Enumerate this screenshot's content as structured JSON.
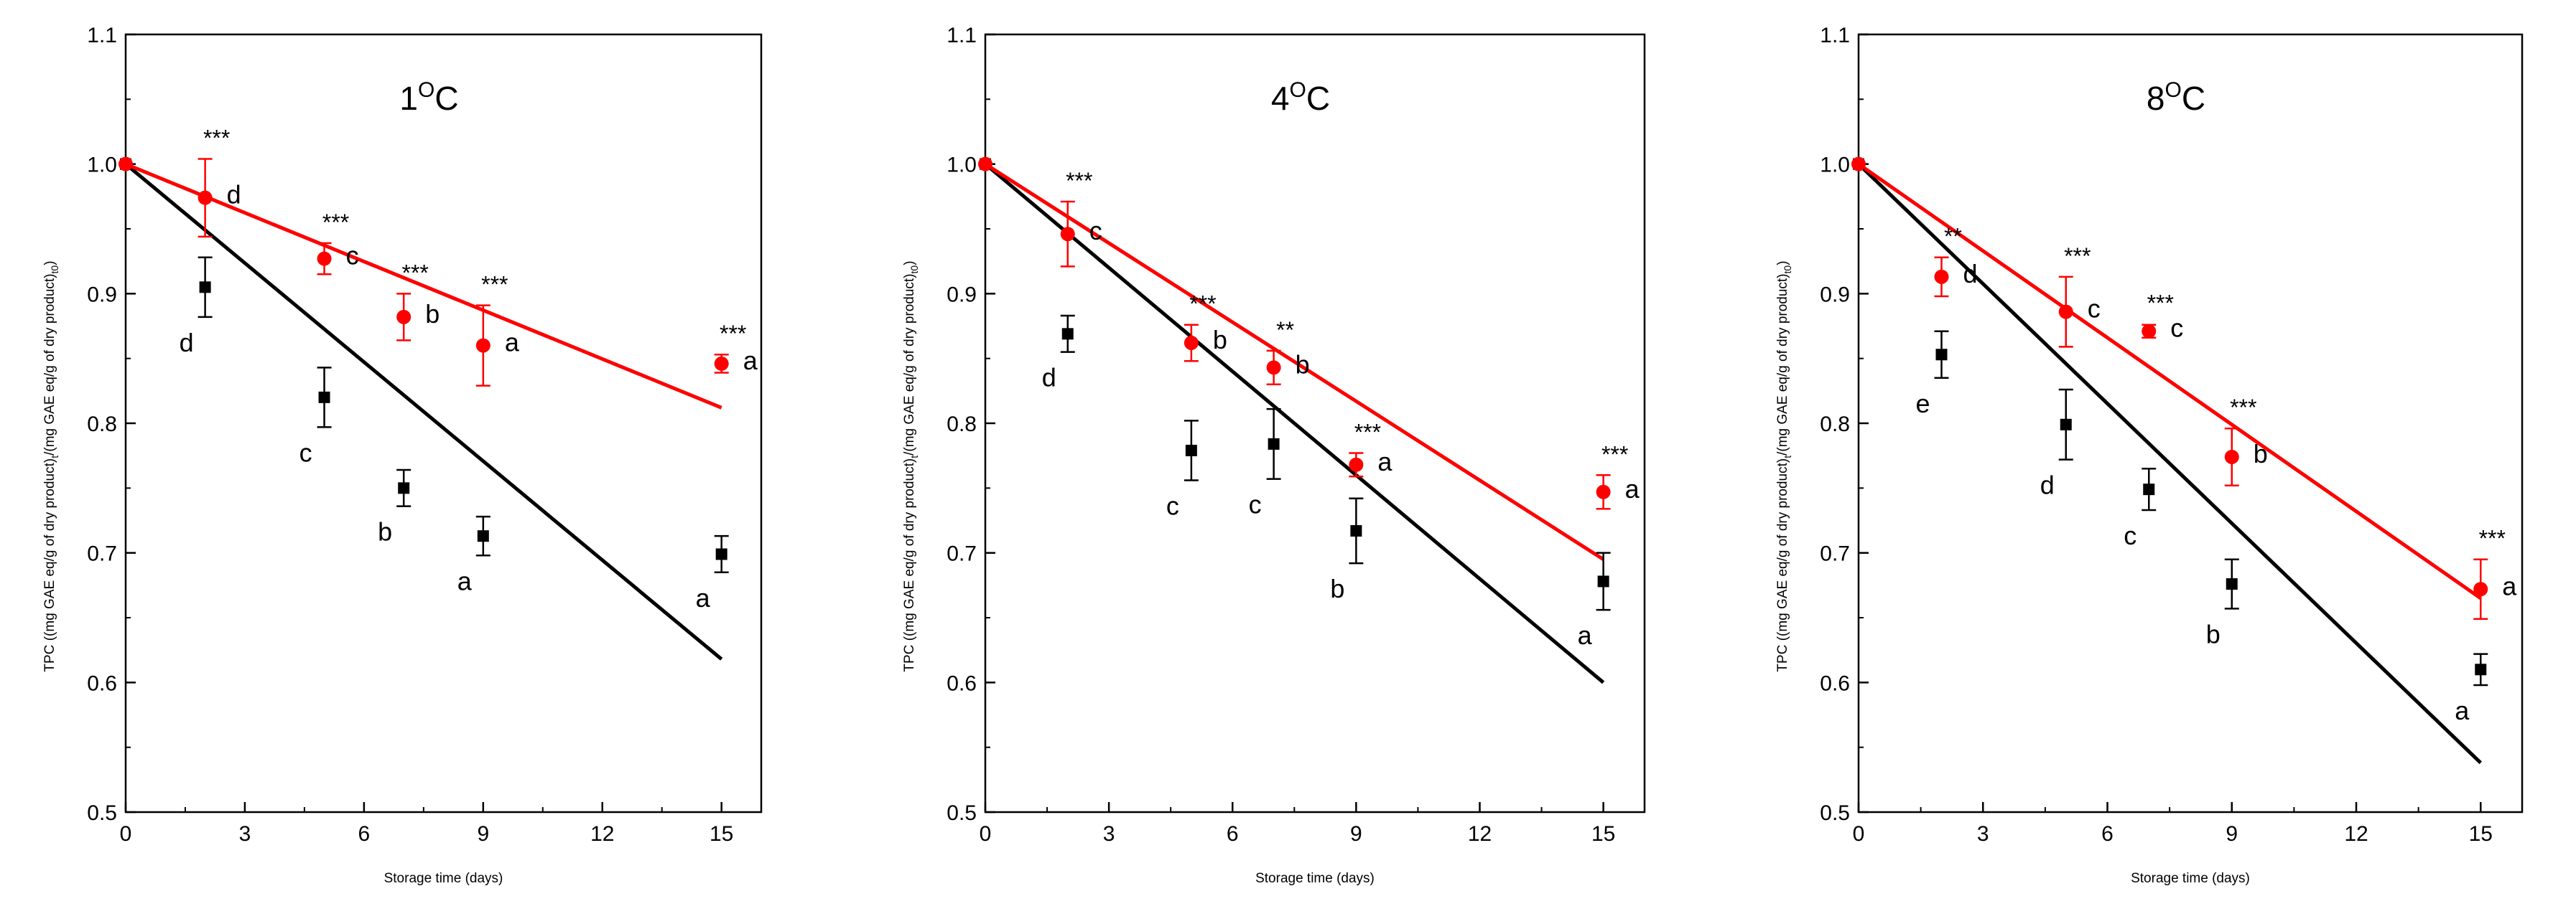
{
  "chart_data": [
    {
      "type": "scatter",
      "title": "1",
      "title_unit": "C",
      "xlabel": "Storage time (days)",
      "ylabel": "TPC ((mg GAE eq/g of dry product)",
      "ylabel_sub_t": "t",
      "ylabel_mid": "/(mg GAE eq/g of dry product)",
      "ylabel_sub_t0": "t0",
      "ylabel_end": ")",
      "xlim": [
        0,
        16
      ],
      "ylim": [
        0.5,
        1.1
      ],
      "xticks": [
        "0",
        "3",
        "6",
        "9",
        "12",
        "15"
      ],
      "yticks": [
        "0.5",
        "0.6",
        "0.7",
        "0.8",
        "0.9",
        "1.0",
        "1.1"
      ],
      "series": [
        {
          "name": "black",
          "marker": "square",
          "color": "#000000",
          "points": [
            {
              "x": 0,
              "y": 1.0,
              "err": 0,
              "letter": ""
            },
            {
              "x": 2,
              "y": 0.905,
              "err": 0.023,
              "letter": "d"
            },
            {
              "x": 5,
              "y": 0.82,
              "err": 0.023,
              "letter": "c"
            },
            {
              "x": 7,
              "y": 0.75,
              "err": 0.014,
              "letter": "b"
            },
            {
              "x": 9,
              "y": 0.713,
              "err": 0.015,
              "letter": "a"
            },
            {
              "x": 15,
              "y": 0.699,
              "err": 0.014,
              "letter": "a"
            }
          ],
          "fit": [
            [
              0,
              1.0
            ],
            [
              15,
              0.618
            ]
          ]
        },
        {
          "name": "red",
          "marker": "circle",
          "color": "#ff0000",
          "points": [
            {
              "x": 0,
              "y": 1.0,
              "err": 0,
              "letter": "",
              "sig": ""
            },
            {
              "x": 2,
              "y": 0.974,
              "err": 0.03,
              "letter": "d",
              "sig": "***"
            },
            {
              "x": 5,
              "y": 0.927,
              "err": 0.012,
              "letter": "c",
              "sig": "***"
            },
            {
              "x": 7,
              "y": 0.882,
              "err": 0.018,
              "letter": "b",
              "sig": "***"
            },
            {
              "x": 9,
              "y": 0.86,
              "err": 0.031,
              "letter": "a",
              "sig": "***"
            },
            {
              "x": 15,
              "y": 0.846,
              "err": 0.007,
              "letter": "a",
              "sig": "***"
            }
          ],
          "fit": [
            [
              0,
              1.0
            ],
            [
              15,
              0.812
            ]
          ]
        }
      ]
    },
    {
      "type": "scatter",
      "title": "4",
      "title_unit": "C",
      "xlabel": "Storage time (days)",
      "ylabel": "TPC ((mg GAE eq/g of dry product)",
      "ylabel_sub_t": "t",
      "ylabel_mid": "/(mg GAE eq/g of dry product)",
      "ylabel_sub_t0": "t0",
      "ylabel_end": ")",
      "xlim": [
        0,
        16
      ],
      "ylim": [
        0.5,
        1.1
      ],
      "xticks": [
        "0",
        "3",
        "6",
        "9",
        "12",
        "15"
      ],
      "yticks": [
        "0.5",
        "0.6",
        "0.7",
        "0.8",
        "0.9",
        "1.0",
        "1.1"
      ],
      "series": [
        {
          "name": "black",
          "marker": "square",
          "color": "#000000",
          "points": [
            {
              "x": 0,
              "y": 1.0,
              "err": 0,
              "letter": ""
            },
            {
              "x": 2,
              "y": 0.869,
              "err": 0.014,
              "letter": "d"
            },
            {
              "x": 5,
              "y": 0.779,
              "err": 0.023,
              "letter": "c"
            },
            {
              "x": 7,
              "y": 0.784,
              "err": 0.027,
              "letter": "c"
            },
            {
              "x": 9,
              "y": 0.717,
              "err": 0.025,
              "letter": "b"
            },
            {
              "x": 15,
              "y": 0.678,
              "err": 0.022,
              "letter": "a"
            }
          ],
          "fit": [
            [
              0,
              1.0
            ],
            [
              15,
              0.6
            ]
          ]
        },
        {
          "name": "red",
          "marker": "circle",
          "color": "#ff0000",
          "points": [
            {
              "x": 0,
              "y": 1.0,
              "err": 0,
              "letter": "",
              "sig": ""
            },
            {
              "x": 2,
              "y": 0.946,
              "err": 0.025,
              "letter": "c",
              "sig": "***"
            },
            {
              "x": 5,
              "y": 0.862,
              "err": 0.014,
              "letter": "b",
              "sig": "***"
            },
            {
              "x": 7,
              "y": 0.843,
              "err": 0.013,
              "letter": "b",
              "sig": "**"
            },
            {
              "x": 9,
              "y": 0.768,
              "err": 0.009,
              "letter": "a",
              "sig": "***"
            },
            {
              "x": 15,
              "y": 0.747,
              "err": 0.013,
              "letter": "a",
              "sig": "***"
            }
          ],
          "fit": [
            [
              0,
              1.0
            ],
            [
              15,
              0.695
            ]
          ]
        }
      ]
    },
    {
      "type": "scatter",
      "title": "8",
      "title_unit": "C",
      "xlabel": "Storage time (days)",
      "ylabel": "TPC ((mg GAE eq/g of dry product)",
      "ylabel_sub_t": "t",
      "ylabel_mid": "/(mg GAE eq/g of dry product)",
      "ylabel_sub_t0": "t0",
      "ylabel_end": ")",
      "xlim": [
        0,
        16
      ],
      "ylim": [
        0.5,
        1.1
      ],
      "xticks": [
        "0",
        "3",
        "6",
        "9",
        "12",
        "15"
      ],
      "yticks": [
        "0.5",
        "0.6",
        "0.7",
        "0.8",
        "0.9",
        "1.0",
        "1.1"
      ],
      "series": [
        {
          "name": "black",
          "marker": "square",
          "color": "#000000",
          "points": [
            {
              "x": 0,
              "y": 1.0,
              "err": 0,
              "letter": ""
            },
            {
              "x": 2,
              "y": 0.853,
              "err": 0.018,
              "letter": "e"
            },
            {
              "x": 5,
              "y": 0.799,
              "err": 0.027,
              "letter": "d"
            },
            {
              "x": 7,
              "y": 0.749,
              "err": 0.016,
              "letter": "c"
            },
            {
              "x": 9,
              "y": 0.676,
              "err": 0.019,
              "letter": "b"
            },
            {
              "x": 15,
              "y": 0.61,
              "err": 0.012,
              "letter": "a"
            }
          ],
          "fit": [
            [
              0,
              1.0
            ],
            [
              15,
              0.538
            ]
          ]
        },
        {
          "name": "red",
          "marker": "circle",
          "color": "#ff0000",
          "points": [
            {
              "x": 0,
              "y": 1.0,
              "err": 0,
              "letter": "",
              "sig": ""
            },
            {
              "x": 2,
              "y": 0.913,
              "err": 0.015,
              "letter": "d",
              "sig": "**"
            },
            {
              "x": 5,
              "y": 0.886,
              "err": 0.027,
              "letter": "c",
              "sig": "***"
            },
            {
              "x": 7,
              "y": 0.871,
              "err": 0.005,
              "letter": "c",
              "sig": "***"
            },
            {
              "x": 9,
              "y": 0.774,
              "err": 0.022,
              "letter": "b",
              "sig": "***"
            },
            {
              "x": 15,
              "y": 0.672,
              "err": 0.023,
              "letter": "a",
              "sig": "***"
            }
          ],
          "fit": [
            [
              0,
              1.0
            ],
            [
              15,
              0.665
            ]
          ]
        }
      ]
    }
  ]
}
